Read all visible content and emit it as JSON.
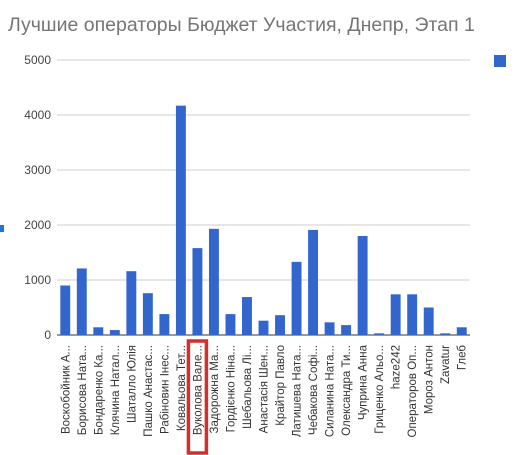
{
  "chart_data": {
    "type": "bar",
    "title": "Лучшие операторы Бюджет Участия, Днепр, Этап 1",
    "xlabel": "",
    "ylabel": "",
    "ylim": [
      0,
      5000
    ],
    "yticks": [
      0,
      1000,
      2000,
      3000,
      4000,
      5000
    ],
    "grid": true,
    "legend_position": "right",
    "bar_color": "#3366cc",
    "highlight_color": "#d32f2f",
    "highlight_index": 8,
    "categories": [
      "Воскобойник А...",
      "Борисова Ната...",
      "Бондаренко Ка...",
      "Клячина Натал...",
      "Шаталло Юлія",
      "Пашко Анастас...",
      "Рабіновин Інес...",
      "Ковальова Тет...",
      "Вуколова Вале...",
      "Задорожна Ма...",
      "Гордієнко Ніна...",
      "Шебальова Лі...",
      "Анастасія Шен...",
      "Крайтор Павло",
      "Латишева Ната...",
      "Чебакова Софі...",
      "Силанина Ната...",
      "Олександра Ти...",
      "Чуприна Анна",
      "Гриценко Альо...",
      "haze242",
      "Операторов Оп...",
      "Мороз Антон",
      "Zavatur",
      "Глеб"
    ],
    "values": [
      900,
      1210,
      140,
      90,
      1160,
      760,
      380,
      4170,
      1580,
      1930,
      380,
      690,
      260,
      360,
      1330,
      1910,
      230,
      180,
      1800,
      30,
      740,
      740,
      500,
      30,
      140
    ]
  }
}
